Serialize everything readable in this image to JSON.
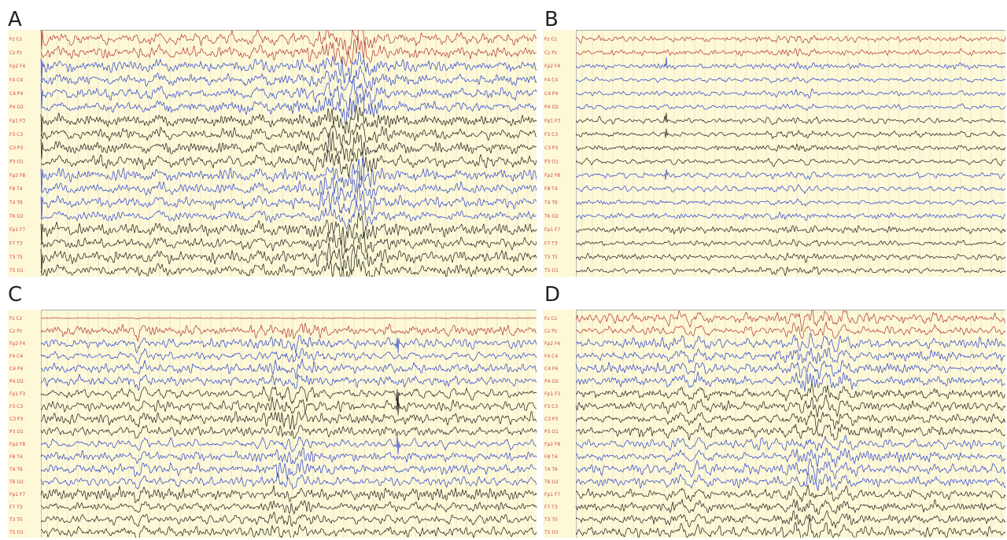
{
  "colors": {
    "background": "#fdf9d8",
    "grid": "#ddd6a8",
    "frame": "#aaaaaa",
    "label": "#d4473f",
    "midline": "#d8b690",
    "trace_red": "#b3322e",
    "trace_blue": "#2a3fd0",
    "trace_black": "#1a1a1a"
  },
  "chart_data": [
    {
      "type": "line",
      "panel": "A",
      "channels": [
        "Fz Cz",
        "Cz Pz",
        "Fp2 F4",
        "F4 C4",
        "C4 P4",
        "P4 O2",
        "Fp1 F3",
        "F3 C3",
        "C3 P3",
        "P3 O1",
        "Fp2 F8",
        "F8 T4",
        "T4 T6",
        "T6 O2",
        "Fp1 F7",
        "F7 T3",
        "T3 T5",
        "T5 O1"
      ],
      "channel_colors": [
        "red",
        "red",
        "blue",
        "blue",
        "blue",
        "blue",
        "black",
        "black",
        "black",
        "black",
        "blue",
        "blue",
        "blue",
        "blue",
        "black",
        "black",
        "black",
        "black"
      ],
      "gain": 2.6,
      "burst_center": 0.62,
      "burst_strength": 1.7,
      "start_artifact": true,
      "spike_position": null,
      "seed": 11
    },
    {
      "type": "line",
      "panel": "B",
      "channels": [
        "Fz Cz",
        "Cz Pz",
        "Fp2 F4",
        "F4 C4",
        "C4 P4",
        "P4 O2",
        "Fp1 F3",
        "F3 C3",
        "C3 P3",
        "P3 O1",
        "Fp2 F8",
        "F8 T4",
        "T4 T6",
        "T6 O2",
        "Fp1 F7",
        "F7 T3",
        "T3 T5",
        "T5 O1"
      ],
      "channel_colors": [
        "red",
        "red",
        "blue",
        "blue",
        "blue",
        "blue",
        "black",
        "black",
        "black",
        "black",
        "blue",
        "blue",
        "blue",
        "blue",
        "black",
        "black",
        "black",
        "black"
      ],
      "gain": 1.3,
      "burst_center": 0.5,
      "burst_strength": 0.6,
      "start_artifact": false,
      "spike_position": 0.21,
      "seed": 23
    },
    {
      "type": "line",
      "panel": "C",
      "channels": [
        "Fz Cz",
        "Cz Pz",
        "Fp2 F4",
        "F4 C4",
        "C4 P4",
        "P4 O2",
        "Fp1 F3",
        "F3 C3",
        "C3 P3",
        "P3 O1",
        "Fp2 F8",
        "F8 T4",
        "T4 T6",
        "T6 O2",
        "Fp1 F7",
        "F7 T3",
        "T3 T5",
        "T5 O1"
      ],
      "channel_colors": [
        "red",
        "red",
        "blue",
        "blue",
        "blue",
        "blue",
        "black",
        "black",
        "black",
        "black",
        "blue",
        "blue",
        "blue",
        "blue",
        "black",
        "black",
        "black",
        "black"
      ],
      "gain": 2.3,
      "burst_center": 0.5,
      "burst_strength": 0.9,
      "start_artifact": false,
      "spike_position": 0.72,
      "seed": 37,
      "flat_first": true,
      "slow_waves": [
        0.2,
        0.52
      ]
    },
    {
      "type": "line",
      "panel": "D",
      "channels": [
        "Fz Cz",
        "Cz Pz",
        "Fp2 F4",
        "F4 C4",
        "C4 P4",
        "P4 O2",
        "Fp1 F3",
        "F3 C3",
        "C3 P3",
        "P3 O1",
        "Fp2 F8",
        "F8 T4",
        "T4 T6",
        "T6 O2",
        "Fp1 F7",
        "F7 T3",
        "T3 T5",
        "T5 O1"
      ],
      "channel_colors": [
        "red",
        "red",
        "blue",
        "blue",
        "blue",
        "blue",
        "black",
        "black",
        "black",
        "black",
        "blue",
        "blue",
        "blue",
        "blue",
        "black",
        "black",
        "black",
        "black"
      ],
      "gain": 2.4,
      "burst_center": 0.55,
      "burst_strength": 0.8,
      "start_artifact": false,
      "spike_position": null,
      "seed": 51,
      "slow_waves": [
        0.22
      ]
    }
  ]
}
